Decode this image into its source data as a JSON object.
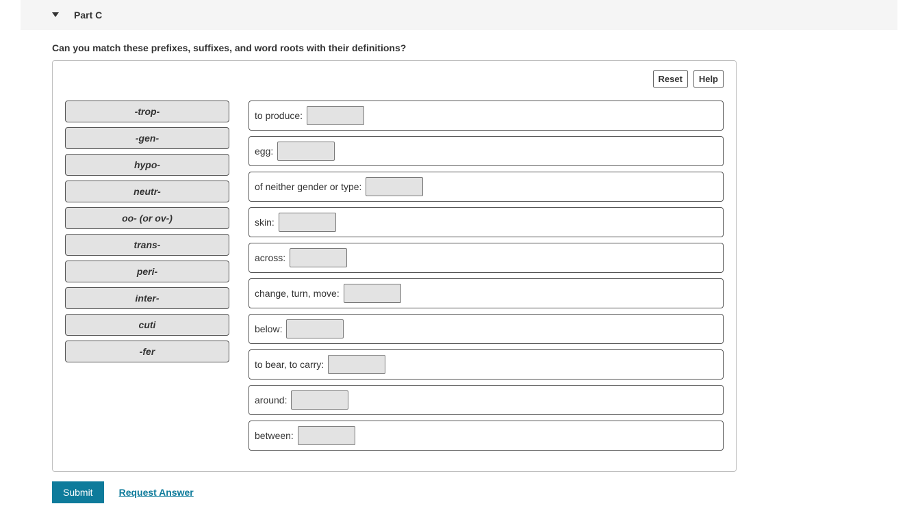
{
  "header": {
    "part_label": "Part C"
  },
  "question_text": "Can you match these prefixes, suffixes, and word roots with their definitions?",
  "toolbar": {
    "reset_label": "Reset",
    "help_label": "Help"
  },
  "drag_items": [
    "-trop-",
    "-gen-",
    "hypo-",
    "neutr-",
    "oo- (or ov-)",
    "trans-",
    "peri-",
    "inter-",
    "cuti",
    "-fer"
  ],
  "drop_targets": [
    "to produce:",
    "egg:",
    "of neither gender or type:",
    "skin:",
    "across:",
    "change, turn, move:",
    "below:",
    "to bear, to carry:",
    "around:",
    "between:"
  ],
  "actions": {
    "submit_label": "Submit",
    "request_answer_label": "Request Answer"
  },
  "styles": {
    "drag_item_bg": "#e3e3e3",
    "drag_item_border": "#555555",
    "panel_border": "#bfbfbf",
    "submit_bg": "#0e7b9b",
    "link_color": "#0e7b9b",
    "header_bg": "#f5f5f5"
  }
}
